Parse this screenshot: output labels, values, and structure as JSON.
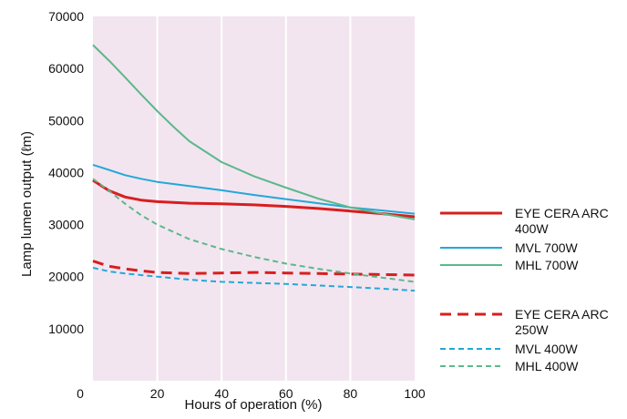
{
  "chart_data": {
    "type": "line",
    "title": "",
    "xlabel": "Hours of operation (%)",
    "ylabel": "Lamp lumen output (ℓm)",
    "xlim": [
      0,
      100
    ],
    "ylim": [
      0,
      70000
    ],
    "x_ticks": [
      "20",
      "40",
      "60",
      "80",
      "100"
    ],
    "x_origin_label": "0",
    "y_ticks": [
      "10000",
      "20000",
      "30000",
      "40000",
      "50000",
      "60000",
      "70000"
    ],
    "grid": "vertical",
    "background": "#f2e5f0",
    "legend_position": "right",
    "series": [
      {
        "name": "EYE CERA ARC\n400W",
        "color": "#d81e1e",
        "style": "solid",
        "width": 3,
        "points": [
          [
            0,
            38500
          ],
          [
            5,
            36500
          ],
          [
            10,
            35300
          ],
          [
            15,
            34700
          ],
          [
            20,
            34400
          ],
          [
            30,
            34100
          ],
          [
            40,
            34000
          ],
          [
            50,
            33800
          ],
          [
            60,
            33500
          ],
          [
            70,
            33100
          ],
          [
            80,
            32600
          ],
          [
            90,
            32100
          ],
          [
            100,
            31500
          ]
        ]
      },
      {
        "name": "MVL 700W",
        "color": "#23a8d8",
        "style": "solid",
        "width": 2,
        "points": [
          [
            0,
            41500
          ],
          [
            5,
            40500
          ],
          [
            10,
            39500
          ],
          [
            15,
            38800
          ],
          [
            20,
            38200
          ],
          [
            30,
            37400
          ],
          [
            40,
            36600
          ],
          [
            50,
            35700
          ],
          [
            60,
            34900
          ],
          [
            70,
            34100
          ],
          [
            80,
            33300
          ],
          [
            90,
            32700
          ],
          [
            100,
            32100
          ]
        ]
      },
      {
        "name": "MHL 700W",
        "color": "#5cb88a",
        "style": "solid",
        "width": 2,
        "points": [
          [
            0,
            64500
          ],
          [
            5,
            61500
          ],
          [
            10,
            58300
          ],
          [
            15,
            55000
          ],
          [
            20,
            51800
          ],
          [
            25,
            48800
          ],
          [
            30,
            46000
          ],
          [
            40,
            42000
          ],
          [
            50,
            39300
          ],
          [
            60,
            37100
          ],
          [
            70,
            35000
          ],
          [
            80,
            33300
          ],
          [
            90,
            32100
          ],
          [
            100,
            31000
          ]
        ]
      },
      {
        "name": "EYE CERA ARC\n250W",
        "color": "#d81e1e",
        "style": "dashed",
        "width": 3,
        "points": [
          [
            0,
            23000
          ],
          [
            5,
            22000
          ],
          [
            10,
            21500
          ],
          [
            15,
            21100
          ],
          [
            20,
            20800
          ],
          [
            30,
            20600
          ],
          [
            40,
            20700
          ],
          [
            50,
            20800
          ],
          [
            60,
            20700
          ],
          [
            70,
            20600
          ],
          [
            80,
            20500
          ],
          [
            90,
            20400
          ],
          [
            100,
            20300
          ]
        ]
      },
      {
        "name": "MVL 400W",
        "color": "#23a8d8",
        "style": "dashed",
        "width": 2,
        "points": [
          [
            0,
            21700
          ],
          [
            5,
            21000
          ],
          [
            10,
            20600
          ],
          [
            20,
            20000
          ],
          [
            30,
            19400
          ],
          [
            40,
            19000
          ],
          [
            50,
            18800
          ],
          [
            60,
            18600
          ],
          [
            70,
            18300
          ],
          [
            80,
            18000
          ],
          [
            90,
            17700
          ],
          [
            100,
            17300
          ]
        ]
      },
      {
        "name": "MHL 400W",
        "color": "#5cb88a",
        "style": "dashed",
        "width": 2,
        "points": [
          [
            0,
            38800
          ],
          [
            5,
            36500
          ],
          [
            10,
            34000
          ],
          [
            15,
            31800
          ],
          [
            20,
            30000
          ],
          [
            30,
            27200
          ],
          [
            40,
            25300
          ],
          [
            50,
            23800
          ],
          [
            60,
            22500
          ],
          [
            70,
            21500
          ],
          [
            80,
            20600
          ],
          [
            90,
            19800
          ],
          [
            100,
            19000
          ]
        ]
      }
    ]
  }
}
